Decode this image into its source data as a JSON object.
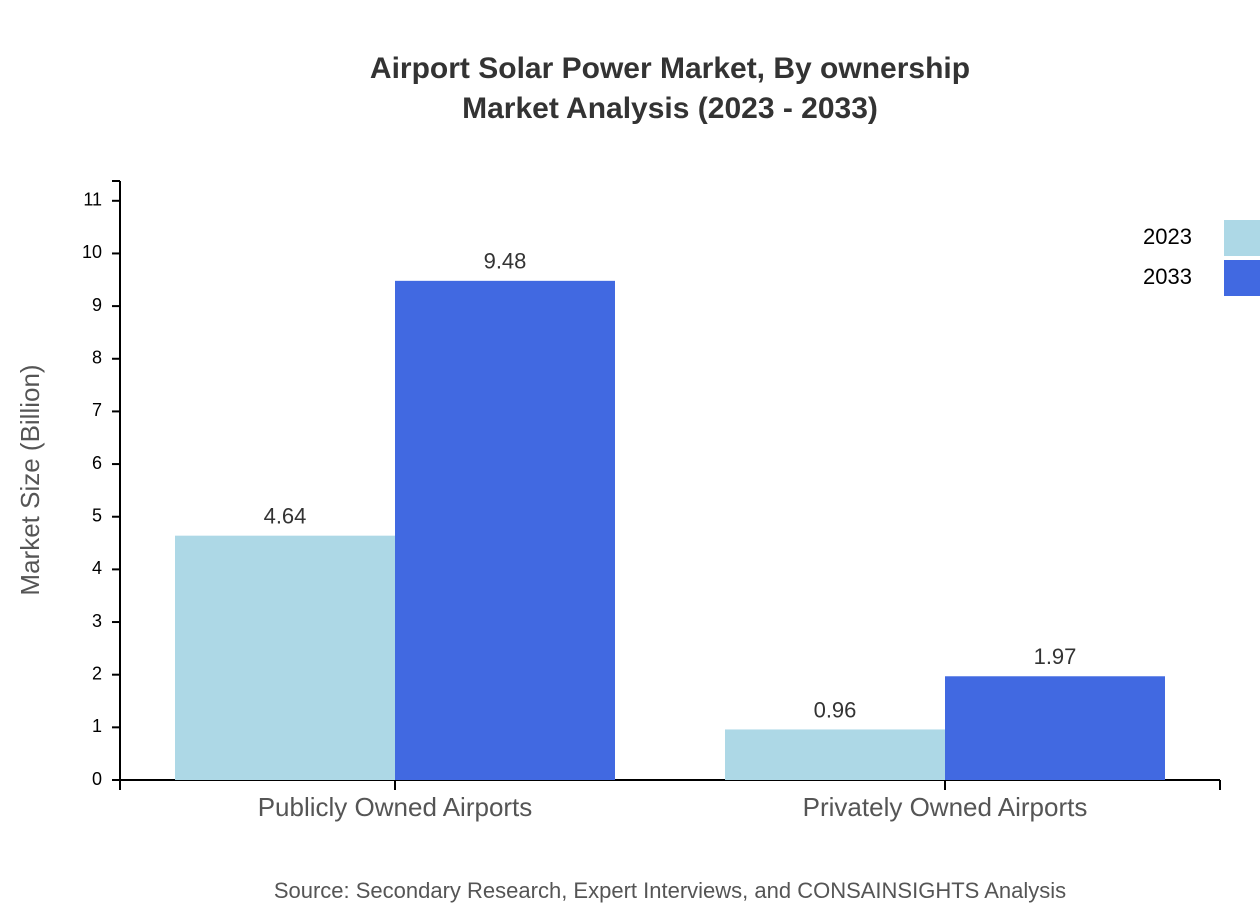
{
  "chart_data": {
    "type": "bar",
    "title": "Airport Solar Power Market, By ownership",
    "subtitle": "Market Analysis (2023 - 2033)",
    "y_label": "Market Size (Billion)",
    "source": "Source: Secondary Research, Expert Interviews, and CONSAINSIGHTS Analysis",
    "categories": [
      "Publicly Owned Airports",
      "Privately Owned Airports"
    ],
    "series": [
      {
        "name": "2023",
        "color": "#add8e6",
        "values": [
          4.64,
          0.96
        ]
      },
      {
        "name": "2033",
        "color": "#4169e1",
        "values": [
          9.48,
          1.97
        ]
      }
    ],
    "ylim": [
      0,
      11.376
    ],
    "yticks": [
      0,
      1,
      2,
      3,
      4,
      5,
      6,
      7,
      8,
      9,
      10,
      11
    ],
    "legend": "top-right"
  }
}
